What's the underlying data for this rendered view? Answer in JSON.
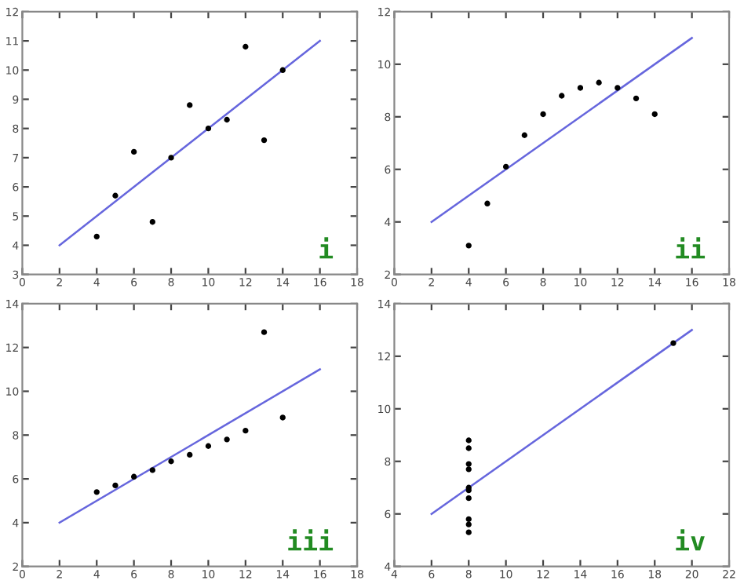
{
  "chart_data": [
    {
      "type": "scatter",
      "xlim": [
        0,
        18
      ],
      "ylim": [
        3,
        12
      ],
      "xticks": [
        0,
        2,
        4,
        6,
        8,
        10,
        12,
        14,
        16,
        18
      ],
      "yticks": [
        3,
        4,
        5,
        6,
        7,
        8,
        9,
        10,
        11,
        12
      ],
      "grid": false,
      "annotations": [
        "i"
      ],
      "series": [
        {
          "color": "#000000",
          "marker": "circle",
          "x": [
            10,
            8,
            13,
            9,
            11,
            14,
            6,
            4,
            12,
            7,
            5
          ],
          "values": [
            8.0,
            7.0,
            7.6,
            8.8,
            8.3,
            10.0,
            7.2,
            4.3,
            10.8,
            4.8,
            5.7
          ]
        },
        {
          "type": "line",
          "marker": "none",
          "color": "#6666dd",
          "x": [
            2,
            16
          ],
          "values": [
            4,
            11
          ]
        }
      ]
    },
    {
      "type": "scatter",
      "xlim": [
        0,
        18
      ],
      "ylim": [
        2,
        12
      ],
      "xticks": [
        0,
        2,
        4,
        6,
        8,
        10,
        12,
        14,
        16,
        18
      ],
      "yticks": [
        2,
        4,
        6,
        8,
        10,
        12
      ],
      "grid": false,
      "annotations": [
        "ii"
      ],
      "series": [
        {
          "color": "#000000",
          "marker": "circle",
          "x": [
            10,
            8,
            13,
            9,
            11,
            14,
            6,
            4,
            12,
            7,
            5
          ],
          "values": [
            9.1,
            8.1,
            8.7,
            8.8,
            9.3,
            8.1,
            6.1,
            3.1,
            9.1,
            7.3,
            4.7
          ]
        },
        {
          "type": "line",
          "marker": "none",
          "color": "#6666dd",
          "x": [
            2,
            16
          ],
          "values": [
            4,
            11
          ]
        }
      ]
    },
    {
      "type": "scatter",
      "xlim": [
        0,
        18
      ],
      "ylim": [
        2,
        14
      ],
      "xticks": [
        0,
        2,
        4,
        6,
        8,
        10,
        12,
        14,
        16,
        18
      ],
      "yticks": [
        2,
        4,
        6,
        8,
        10,
        12,
        14
      ],
      "grid": false,
      "annotations": [
        "iii"
      ],
      "series": [
        {
          "color": "#000000",
          "marker": "circle",
          "x": [
            10,
            8,
            13,
            9,
            11,
            14,
            6,
            4,
            12,
            7,
            5
          ],
          "values": [
            7.5,
            6.8,
            12.7,
            7.1,
            7.8,
            8.8,
            6.1,
            5.4,
            8.2,
            6.4,
            5.7
          ]
        },
        {
          "type": "line",
          "marker": "none",
          "color": "#6666dd",
          "x": [
            2,
            16
          ],
          "values": [
            4,
            11
          ]
        }
      ]
    },
    {
      "type": "scatter",
      "xlim": [
        4,
        22
      ],
      "ylim": [
        4,
        14
      ],
      "xticks": [
        4,
        6,
        8,
        10,
        12,
        14,
        16,
        18,
        20,
        22
      ],
      "yticks": [
        4,
        6,
        8,
        10,
        12,
        14
      ],
      "grid": false,
      "annotations": [
        "iv"
      ],
      "series": [
        {
          "color": "#000000",
          "marker": "circle",
          "x": [
            8,
            8,
            8,
            8,
            8,
            8,
            8,
            19,
            8,
            8,
            8
          ],
          "values": [
            6.6,
            5.8,
            7.7,
            8.8,
            8.5,
            7.0,
            5.3,
            12.5,
            5.6,
            7.9,
            6.9
          ]
        },
        {
          "type": "line",
          "marker": "none",
          "color": "#6666dd",
          "x": [
            6,
            20
          ],
          "values": [
            6,
            13
          ]
        }
      ]
    }
  ]
}
